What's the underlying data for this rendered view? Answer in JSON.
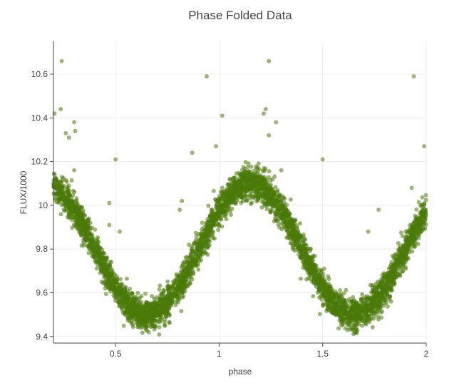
{
  "chart_data": {
    "type": "scatter",
    "title": "Phase Folded Data",
    "xlabel": "phase",
    "ylabel": "FLUX/1000",
    "xlim": [
      0.2,
      2.0
    ],
    "ylim": [
      9.37,
      10.75
    ],
    "x_ticks": [
      {
        "value": 0.5,
        "label": "0.5"
      },
      {
        "value": 1.0,
        "label": "1"
      },
      {
        "value": 1.5,
        "label": "1.5"
      },
      {
        "value": 2.0,
        "label": "2"
      }
    ],
    "y_ticks": [
      {
        "value": 9.4,
        "label": "9.4"
      },
      {
        "value": 9.6,
        "label": "9.6"
      },
      {
        "value": 9.8,
        "label": "9.8"
      },
      {
        "value": 10.0,
        "label": "10"
      },
      {
        "value": 10.2,
        "label": "10.2"
      },
      {
        "value": 10.4,
        "label": "10.4"
      },
      {
        "value": 10.6,
        "label": "10.6"
      }
    ],
    "grid": true,
    "legend": "none",
    "marker_color": "#4a7a0a",
    "marker_opacity": 0.55,
    "series": [
      {
        "curve_model": {
          "description": "dense band following a sinusoid, period 1 in phase",
          "mean": 9.8,
          "amplitude": 0.3,
          "peak_phase": 0.15,
          "band_scatter": 0.035,
          "points_per_unit_phase": 2600
        },
        "outliers": {
          "x": [
            0.205,
            0.235,
            0.24,
            0.26,
            0.275,
            0.3,
            0.305,
            0.5,
            0.47,
            0.47,
            0.81,
            0.87,
            0.94,
            0.985,
            1.015,
            1.215,
            1.225,
            1.24,
            1.24,
            1.275,
            1.5,
            1.77,
            1.94,
            1.99,
            0.3,
            0.52,
            0.82,
            1.3,
            1.72,
            1.93
          ],
          "y": [
            10.42,
            10.44,
            10.66,
            10.33,
            10.31,
            10.38,
            10.34,
            10.21,
            10.01,
            9.91,
            9.98,
            10.24,
            10.59,
            10.27,
            10.41,
            10.42,
            10.44,
            10.66,
            10.32,
            10.38,
            10.21,
            9.98,
            10.59,
            10.27,
            10.16,
            9.88,
            10.02,
            10.16,
            9.88,
            10.08
          ]
        }
      }
    ]
  }
}
